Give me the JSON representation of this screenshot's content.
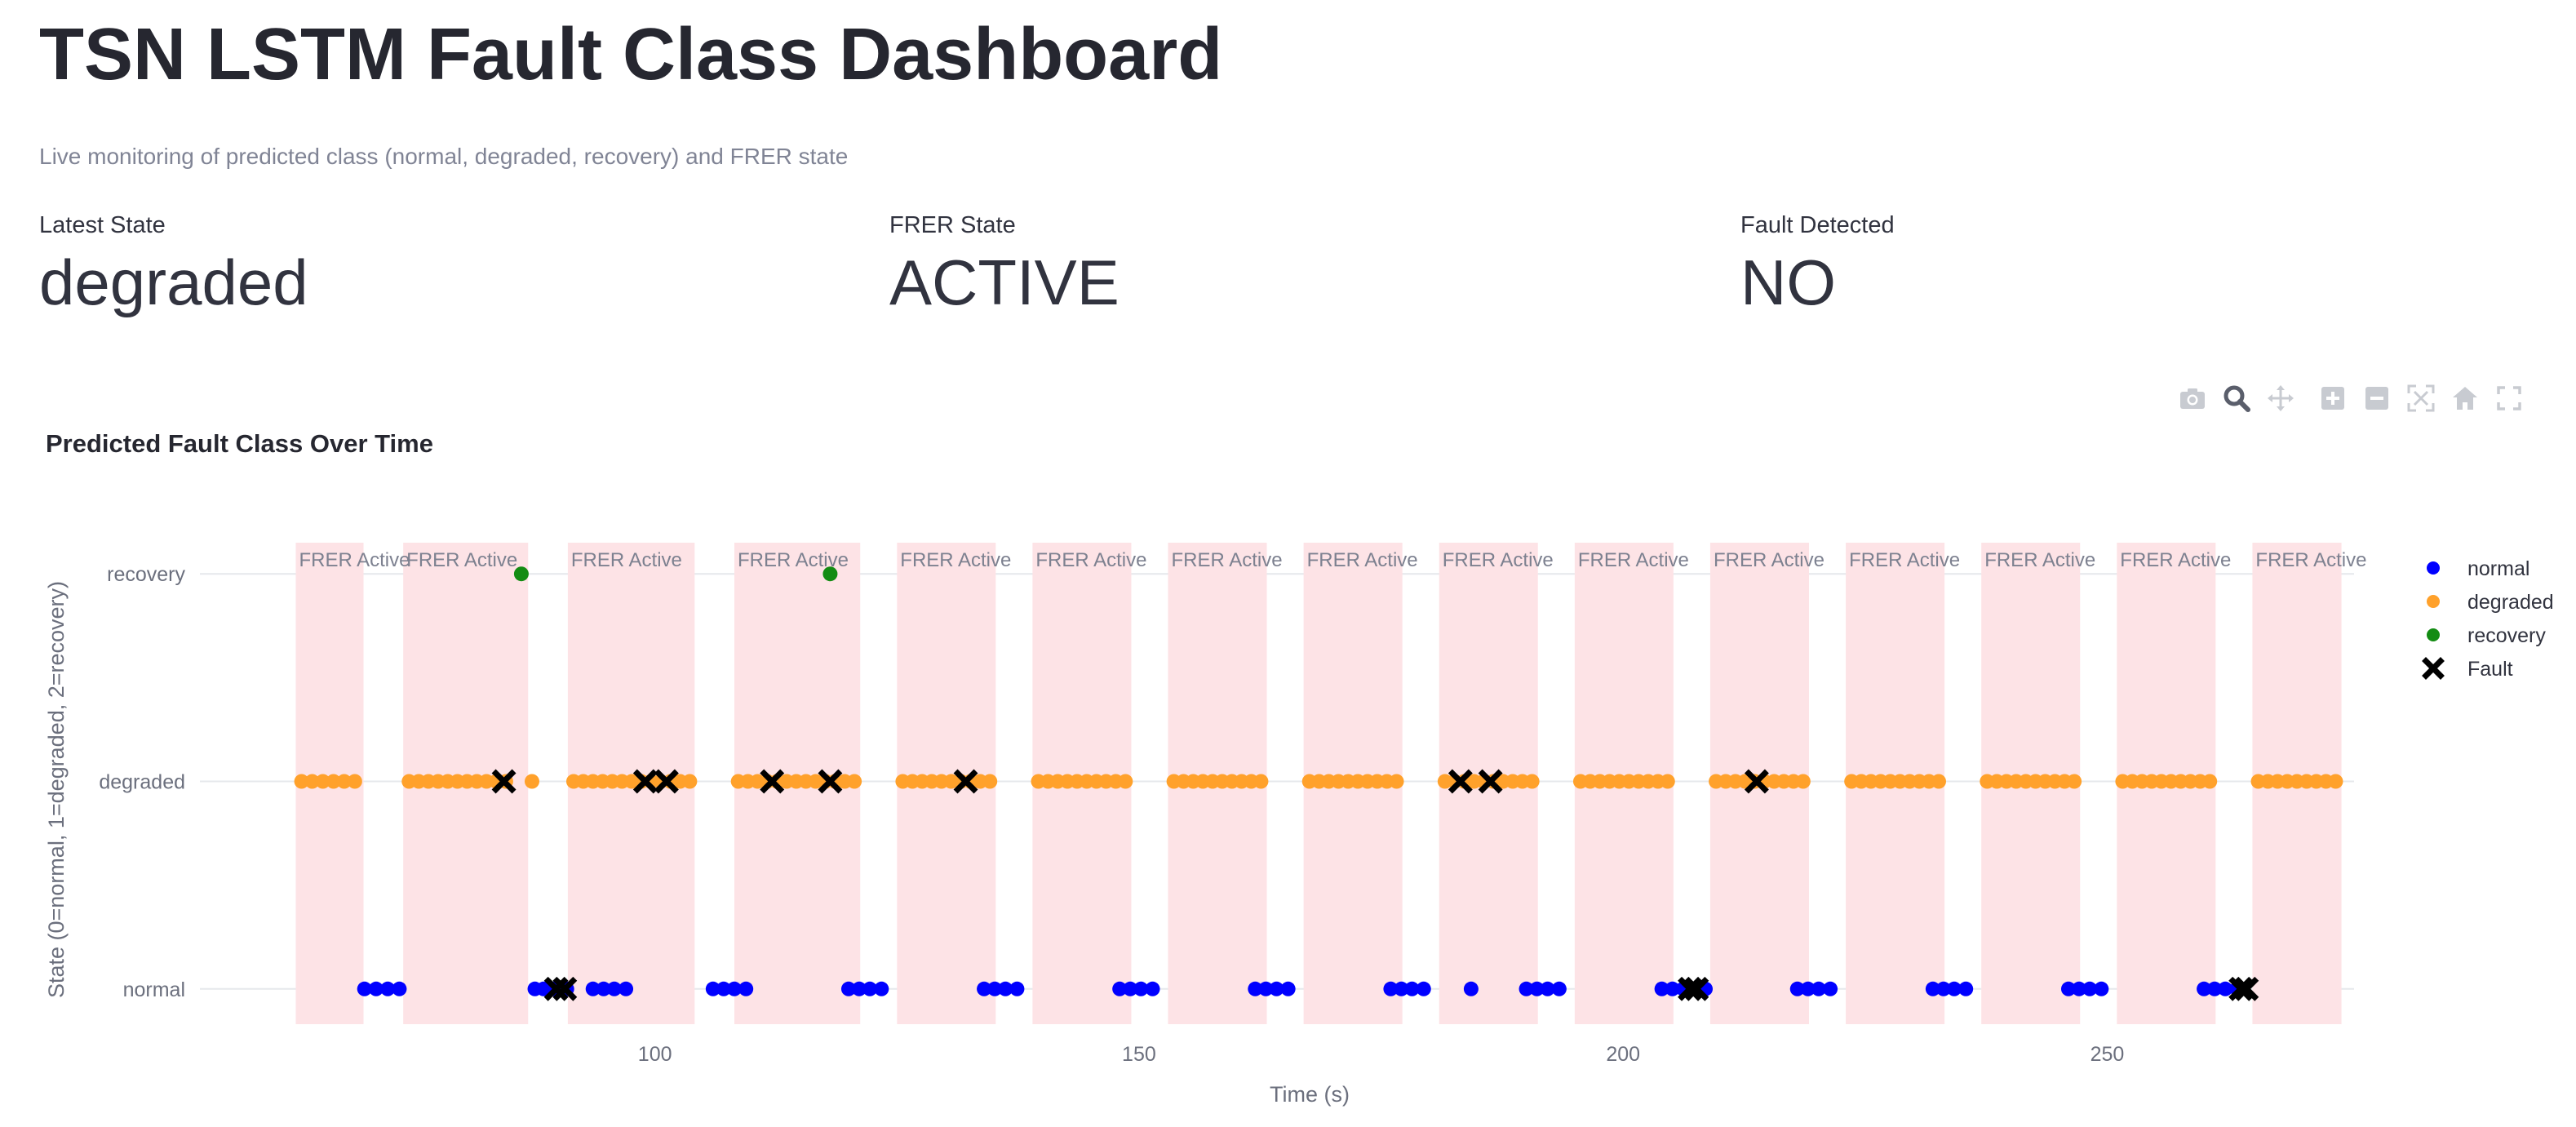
{
  "page": {
    "title": "TSN LSTM Fault Class Dashboard",
    "subtitle": "Live monitoring of predicted class (normal, degraded, recovery) and FRER state"
  },
  "metrics": [
    {
      "label": "Latest State",
      "value": "degraded"
    },
    {
      "label": "FRER State",
      "value": "ACTIVE"
    },
    {
      "label": "Fault Detected",
      "value": "NO"
    }
  ],
  "modebar": [
    "camera-icon",
    "zoom-icon",
    "pan-icon",
    "zoom-in-icon",
    "zoom-out-icon",
    "autoscale-icon",
    "reset-axes-icon",
    "fullscreen-icon"
  ],
  "colors": {
    "normal": "#0000ff",
    "degraded": "#ffa12b",
    "recovery": "#138c13",
    "fault": "#000000",
    "frer_band": "#fde3e6"
  },
  "chart_data": {
    "type": "scatter",
    "title": "Predicted Fault Class Over Time",
    "xlabel": "Time (s)",
    "ylabel": "State (0=normal, 1=degraded, 2=recovery)",
    "xlim": [
      53,
      275.5
    ],
    "ylim": [
      -0.17,
      2.17
    ],
    "xticks": [
      100,
      150,
      200,
      250
    ],
    "yticks": [
      {
        "value": 0,
        "label": "normal"
      },
      {
        "value": 1,
        "label": "degraded"
      },
      {
        "value": 2,
        "label": "recovery"
      }
    ],
    "grid": true,
    "legend_position": "right",
    "frer_label": "FRER Active",
    "frer_bands": [
      [
        63.5,
        69.3
      ],
      [
        74.6,
        86.3
      ],
      [
        91.6,
        103.5
      ],
      [
        108.8,
        120.6
      ],
      [
        125.6,
        134.6
      ],
      [
        139.6,
        148.6
      ],
      [
        153.6,
        162.6
      ],
      [
        167.6,
        176.6
      ],
      [
        181.6,
        190.6
      ],
      [
        195.6,
        204.6
      ],
      [
        209.6,
        218.6
      ],
      [
        223.6,
        232.6
      ],
      [
        237.6,
        246.6
      ],
      [
        251.6,
        260.6
      ],
      [
        265.6,
        273.6
      ]
    ],
    "series": [
      {
        "name": "normal",
        "y": 0,
        "x": [
          70.0,
          71.2,
          72.4,
          73.6,
          87.6,
          88.5,
          89.4,
          90.3,
          90.9,
          93.6,
          94.7,
          95.8,
          97.0,
          106.0,
          107.1,
          108.2,
          109.4,
          120.0,
          121.1,
          122.2,
          123.4,
          134.0,
          135.1,
          136.2,
          137.4,
          148.0,
          149.1,
          150.2,
          151.4,
          162.0,
          163.1,
          164.2,
          165.4,
          176.0,
          177.1,
          178.2,
          179.4,
          184.3,
          190.0,
          191.1,
          192.2,
          193.4,
          204.0,
          205.1,
          206.2,
          207.4,
          208.5,
          218.0,
          219.1,
          220.2,
          221.4,
          232.0,
          233.1,
          234.2,
          235.4,
          246.0,
          247.1,
          248.2,
          249.4,
          260.0,
          261.1,
          262.2,
          263.4
        ]
      },
      {
        "name": "degraded",
        "y": 1,
        "x": [
          63.5,
          64.6,
          65.7,
          66.8,
          67.9,
          69.0,
          74.6,
          75.6,
          76.6,
          77.6,
          78.6,
          79.6,
          80.6,
          81.6,
          82.6,
          83.6,
          84.6,
          87.3,
          91.6,
          92.6,
          93.6,
          94.6,
          95.6,
          96.6,
          97.6,
          98.6,
          99.6,
          100.6,
          101.6,
          102.6,
          103.6,
          108.6,
          109.6,
          110.6,
          111.6,
          112.6,
          113.6,
          114.6,
          115.6,
          116.6,
          117.6,
          118.6,
          119.6,
          120.6,
          125.6,
          126.6,
          127.6,
          128.6,
          129.6,
          130.6,
          131.6,
          132.6,
          133.6,
          134.6,
          139.6,
          140.6,
          141.6,
          142.6,
          143.6,
          144.6,
          145.6,
          146.6,
          147.6,
          148.6,
          153.6,
          154.6,
          155.6,
          156.6,
          157.6,
          158.6,
          159.6,
          160.6,
          161.6,
          162.6,
          167.6,
          168.6,
          169.6,
          170.6,
          171.6,
          172.6,
          173.6,
          174.6,
          175.6,
          176.6,
          181.6,
          182.6,
          183.6,
          184.6,
          185.6,
          186.6,
          187.6,
          188.6,
          189.6,
          190.6,
          195.6,
          196.6,
          197.6,
          198.6,
          199.6,
          200.6,
          201.6,
          202.6,
          203.6,
          204.6,
          209.6,
          210.6,
          211.6,
          212.6,
          213.6,
          214.6,
          215.6,
          216.6,
          217.6,
          218.6,
          223.6,
          224.6,
          225.6,
          226.6,
          227.6,
          228.6,
          229.6,
          230.6,
          231.6,
          232.6,
          237.6,
          238.6,
          239.6,
          240.6,
          241.6,
          242.6,
          243.6,
          244.6,
          245.6,
          246.6,
          251.6,
          252.6,
          253.6,
          254.6,
          255.6,
          256.6,
          257.6,
          258.6,
          259.6,
          260.6,
          265.6,
          266.6,
          267.6,
          268.6,
          269.6,
          270.6,
          271.6,
          272.6,
          273.6
        ]
      },
      {
        "name": "recovery",
        "y": 2,
        "x": [
          86.2,
          118.1
        ]
      },
      {
        "name": "Fault",
        "points": [
          {
            "x": 84.4,
            "y": 1
          },
          {
            "x": 99.0,
            "y": 1
          },
          {
            "x": 101.2,
            "y": 1
          },
          {
            "x": 112.1,
            "y": 1
          },
          {
            "x": 118.1,
            "y": 1
          },
          {
            "x": 132.1,
            "y": 1
          },
          {
            "x": 183.2,
            "y": 1
          },
          {
            "x": 186.3,
            "y": 1
          },
          {
            "x": 213.8,
            "y": 1
          },
          {
            "x": 89.8,
            "y": 0
          },
          {
            "x": 90.7,
            "y": 0
          },
          {
            "x": 206.9,
            "y": 0
          },
          {
            "x": 207.6,
            "y": 0
          },
          {
            "x": 263.8,
            "y": 0
          },
          {
            "x": 264.4,
            "y": 0
          }
        ]
      }
    ]
  }
}
